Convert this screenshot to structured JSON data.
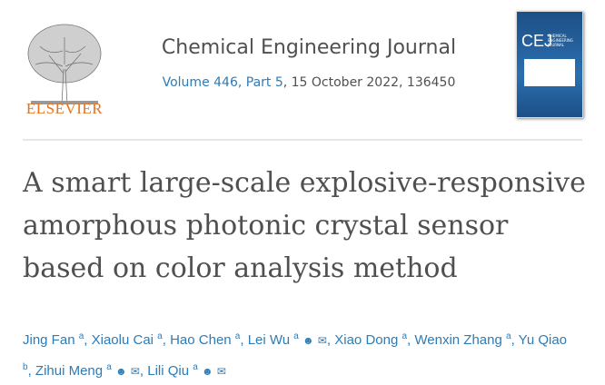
{
  "publisher": "ELSEVIER",
  "journal": {
    "title": "Chemical Engineering Journal",
    "volume_link": "Volume 446, Part 5",
    "date_article": ", 15 October 2022, 136450"
  },
  "cover": {
    "abbr": "CEJ",
    "sub": "CHEMICAL ENGINEERING JOURNAL"
  },
  "article_title": "A smart large-scale explosive-responsive amorphous photonic crystal sensor based on color analysis method",
  "authors": [
    {
      "name": "Jing Fan",
      "aff": "a",
      "person": false,
      "email": false
    },
    {
      "name": "Xiaolu Cai",
      "aff": "a",
      "person": false,
      "email": false
    },
    {
      "name": "Hao Chen",
      "aff": "a",
      "person": false,
      "email": false
    },
    {
      "name": "Lei Wu",
      "aff": "a",
      "person": true,
      "email": true
    },
    {
      "name": "Xiao Dong",
      "aff": "a",
      "person": false,
      "email": false
    },
    {
      "name": "Wenxin Zhang",
      "aff": "a",
      "person": false,
      "email": false
    },
    {
      "name": "Yu Qiao",
      "aff": "b",
      "person": false,
      "email": false
    },
    {
      "name": "Zihui Meng",
      "aff": "a",
      "person": true,
      "email": true
    },
    {
      "name": "Lili Qiu",
      "aff": "a",
      "person": true,
      "email": true
    }
  ],
  "colors": {
    "link": "#2e7bb5",
    "publisher": "#e9711c",
    "text": "#505050"
  }
}
